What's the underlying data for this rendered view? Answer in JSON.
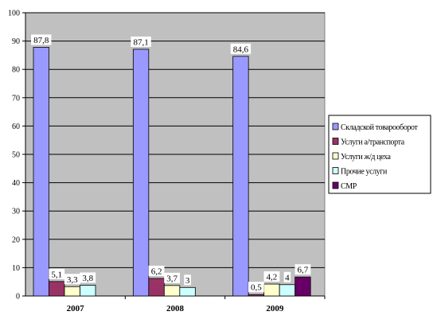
{
  "chart_data": {
    "type": "bar",
    "categories": [
      "2007",
      "2008",
      "2009"
    ],
    "ylim": [
      0,
      100
    ],
    "ytick_step": 10,
    "grid": true,
    "legend_position": "right",
    "series": [
      {
        "name": "Складской товарооборот",
        "color": "#9999ff",
        "values": [
          87.8,
          87.1,
          84.6
        ],
        "labels": [
          "87,8",
          "87,1",
          "84,6"
        ]
      },
      {
        "name": "Услуги а/транспорта",
        "color": "#993366",
        "values": [
          5.1,
          6.2,
          0.5
        ],
        "labels": [
          "5,1",
          "6,2",
          "0,5"
        ]
      },
      {
        "name": "Услуги ж/д цеха",
        "color": "#ffffcc",
        "values": [
          3.3,
          3.7,
          4.2
        ],
        "labels": [
          "3,3",
          "3,7",
          "4,2"
        ]
      },
      {
        "name": "Прочие услуги",
        "color": "#ccffff",
        "values": [
          3.8,
          3,
          4
        ],
        "labels": [
          "3,8",
          "3",
          "4"
        ]
      },
      {
        "name": "СМР",
        "color": "#660066",
        "values": [
          null,
          null,
          6.7
        ],
        "labels": [
          null,
          null,
          "6,7"
        ]
      }
    ]
  }
}
